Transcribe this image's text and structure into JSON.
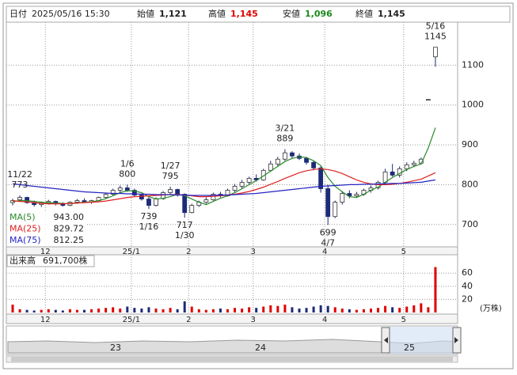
{
  "header": {
    "date_label": "日付",
    "date": "2025/05/16 15:30",
    "open_label": "始値",
    "open": "1,121",
    "high_label": "高値",
    "high": "1,145",
    "low_label": "安値",
    "low": "1,096",
    "close_label": "終値",
    "close": "1,145"
  },
  "chart_data": {
    "type": "candlestick",
    "categories": [
      null,
      null,
      null,
      null,
      null,
      "12",
      null,
      null,
      null,
      null,
      null,
      null,
      null,
      null,
      null,
      null,
      null,
      "25/1",
      null,
      null,
      null,
      null,
      null,
      null,
      null,
      "2",
      null,
      null,
      null,
      null,
      null,
      null,
      null,
      null,
      "3",
      null,
      null,
      null,
      null,
      null,
      null,
      null,
      null,
      null,
      "4",
      null,
      null,
      null,
      null,
      null,
      null,
      null,
      null,
      null,
      null,
      "5",
      null,
      null,
      null,
      null
    ],
    "open": [
      755,
      762,
      768,
      755,
      750,
      754,
      758,
      752,
      748,
      756,
      760,
      756,
      760,
      768,
      776,
      786,
      792,
      786,
      774,
      764,
      748,
      765,
      780,
      788,
      776,
      730,
      748,
      756,
      762,
      776,
      772,
      786,
      796,
      806,
      816,
      812,
      836,
      852,
      864,
      880,
      872,
      866,
      856,
      842,
      790,
      720,
      756,
      778,
      772,
      776,
      786,
      792,
      806,
      832,
      824,
      840,
      850,
      854,
      1014,
      1121
    ],
    "high": [
      765,
      773,
      770,
      760,
      758,
      762,
      760,
      756,
      758,
      764,
      766,
      762,
      770,
      780,
      790,
      798,
      800,
      790,
      778,
      770,
      768,
      784,
      795,
      790,
      778,
      752,
      760,
      768,
      780,
      782,
      790,
      802,
      812,
      820,
      826,
      840,
      860,
      870,
      889,
      884,
      878,
      870,
      860,
      846,
      800,
      760,
      784,
      786,
      782,
      790,
      798,
      810,
      840,
      852,
      846,
      856,
      860,
      868,
      1014,
      1145
    ],
    "low": [
      748,
      758,
      752,
      745,
      744,
      750,
      748,
      745,
      746,
      752,
      754,
      752,
      758,
      764,
      772,
      780,
      782,
      770,
      760,
      739,
      745,
      762,
      776,
      770,
      717,
      728,
      744,
      752,
      760,
      768,
      770,
      780,
      790,
      800,
      808,
      810,
      832,
      846,
      860,
      866,
      862,
      850,
      836,
      780,
      699,
      716,
      750,
      766,
      768,
      772,
      780,
      788,
      800,
      820,
      818,
      834,
      844,
      850,
      1014,
      1096
    ],
    "close": [
      760,
      768,
      755,
      750,
      754,
      758,
      752,
      748,
      756,
      760,
      756,
      760,
      768,
      776,
      786,
      792,
      786,
      774,
      764,
      748,
      765,
      780,
      788,
      776,
      730,
      748,
      756,
      762,
      776,
      772,
      786,
      796,
      806,
      816,
      812,
      836,
      852,
      864,
      880,
      872,
      866,
      856,
      842,
      790,
      720,
      756,
      778,
      772,
      776,
      786,
      792,
      806,
      832,
      824,
      840,
      850,
      854,
      864,
      1014,
      1145
    ],
    "up_color": "#ffffff",
    "down_color": "#1c2a78",
    "ylim": [
      644,
      1208
    ],
    "yticks": [
      700,
      800,
      900,
      1000,
      1100
    ],
    "grid": true,
    "ma": [
      {
        "name": "MA(5)",
        "color": "#2a8a2a",
        "legend_value": "943.00",
        "values": [
          758,
          760,
          760,
          758,
          756,
          755,
          754,
          753,
          752,
          754,
          756,
          757,
          760,
          765,
          772,
          780,
          785,
          784,
          780,
          770,
          764,
          766,
          770,
          776,
          772,
          764,
          756,
          750,
          758,
          766,
          772,
          780,
          790,
          800,
          810,
          822,
          834,
          846,
          858,
          866,
          870,
          868,
          860,
          848,
          818,
          796,
          782,
          770,
          768,
          776,
          786,
          794,
          806,
          818,
          828,
          838,
          846,
          852,
          892,
          943
        ]
      },
      {
        "name": "MA(25)",
        "color": "#e02020",
        "legend_value": "829.72",
        "values": [
          760,
          758,
          757,
          755,
          753,
          752,
          752,
          752,
          753,
          754,
          755,
          756,
          757,
          759,
          762,
          765,
          768,
          770,
          771,
          772,
          773,
          774,
          775,
          775,
          774,
          772,
          770,
          770,
          771,
          772,
          774,
          776,
          779,
          783,
          788,
          794,
          801,
          808,
          816,
          823,
          830,
          835,
          838,
          840,
          838,
          834,
          828,
          820,
          812,
          806,
          802,
          800,
          800,
          801,
          803,
          806,
          810,
          814,
          822,
          830
        ]
      },
      {
        "name": "MA(75)",
        "color": "#2424c0",
        "legend_value": "812.25",
        "values": [
          802,
          800,
          798,
          796,
          794,
          792,
          790,
          788,
          786,
          784,
          782,
          781,
          780,
          779,
          778,
          778,
          777,
          777,
          776,
          776,
          775,
          775,
          775,
          774,
          774,
          773,
          773,
          773,
          773,
          774,
          774,
          775,
          776,
          777,
          778,
          780,
          782,
          784,
          786,
          788,
          790,
          792,
          794,
          796,
          797,
          798,
          799,
          800,
          800,
          801,
          801,
          802,
          802,
          803,
          803,
          804,
          805,
          806,
          809,
          812
        ]
      }
    ],
    "annotations": [
      {
        "date": "11/22",
        "price": 773
      },
      {
        "date": "1/6",
        "price": 800
      },
      {
        "date": "1/16",
        "price": 739
      },
      {
        "date": "1/27",
        "price": 795
      },
      {
        "date": "1/30",
        "price": 717
      },
      {
        "date": "3/21",
        "price": 889
      },
      {
        "date": "4/7",
        "price": 699
      },
      {
        "date": "5/16",
        "price": 1145
      }
    ],
    "volume": {
      "label": "出来高",
      "last": "691,700株",
      "unit": "(万株)",
      "ylim": [
        0,
        88
      ],
      "yticks": [
        20,
        40,
        60
      ],
      "up_color": "#e00000",
      "down_color": "#1c2a78",
      "values": [
        12,
        5,
        4,
        3,
        4,
        5,
        4,
        3,
        5,
        4,
        4,
        5,
        6,
        7,
        8,
        6,
        9,
        7,
        6,
        8,
        6,
        5,
        7,
        5,
        17,
        9,
        5,
        4,
        5,
        6,
        5,
        7,
        6,
        8,
        7,
        9,
        11,
        10,
        12,
        8,
        6,
        7,
        9,
        11,
        10,
        8,
        6,
        5,
        4,
        5,
        6,
        7,
        10,
        8,
        7,
        9,
        11,
        14,
        8,
        69.17
      ]
    }
  },
  "navigator": {
    "labels": [
      "23",
      "24",
      "25"
    ]
  }
}
